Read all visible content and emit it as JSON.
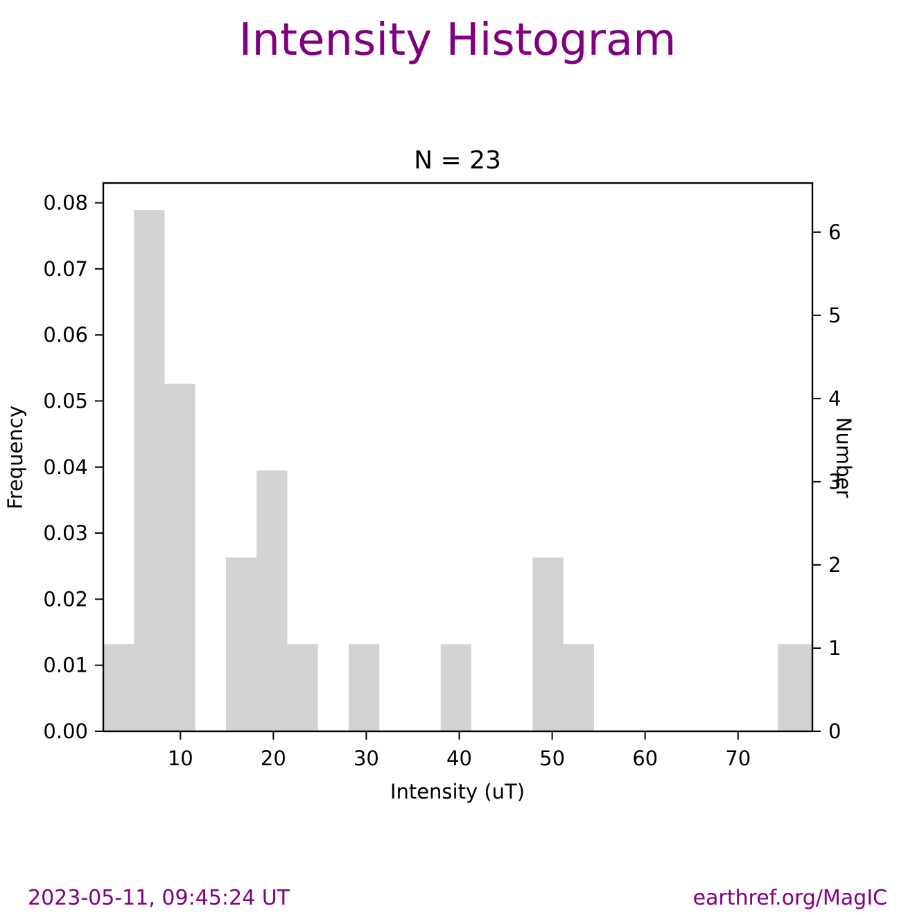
{
  "chart_data": {
    "type": "bar",
    "title": "Intensity Histogram",
    "subtitle": "N = 23",
    "xlabel": "Intensity (uT)",
    "ylabel": "Frequency",
    "ylabel_right": "Number",
    "xlim": [
      1.7,
      78.0
    ],
    "ylim": [
      0,
      0.083
    ],
    "ylim_right": [
      0,
      6.59
    ],
    "x_ticks": [
      10,
      20,
      30,
      40,
      50,
      60,
      70
    ],
    "y_ticks": [
      0.0,
      0.01,
      0.02,
      0.03,
      0.04,
      0.05,
      0.06,
      0.07,
      0.08
    ],
    "y_ticks_right": [
      0,
      1,
      2,
      3,
      4,
      5,
      6
    ],
    "grid": false,
    "bar_color": "#d3d3d3",
    "bins": [
      {
        "start": 1.7,
        "end": 5.0,
        "count": 1,
        "frequency": 0.0132
      },
      {
        "start": 5.0,
        "end": 8.3,
        "count": 6,
        "frequency": 0.0789
      },
      {
        "start": 8.3,
        "end": 11.6,
        "count": 4,
        "frequency": 0.0526
      },
      {
        "start": 11.6,
        "end": 14.9,
        "count": 0,
        "frequency": 0.0
      },
      {
        "start": 14.9,
        "end": 18.2,
        "count": 2,
        "frequency": 0.0263
      },
      {
        "start": 18.2,
        "end": 21.5,
        "count": 3,
        "frequency": 0.0395
      },
      {
        "start": 21.5,
        "end": 24.8,
        "count": 1,
        "frequency": 0.0132
      },
      {
        "start": 24.8,
        "end": 28.1,
        "count": 0,
        "frequency": 0.0
      },
      {
        "start": 28.1,
        "end": 31.4,
        "count": 1,
        "frequency": 0.0132
      },
      {
        "start": 31.4,
        "end": 34.7,
        "count": 0,
        "frequency": 0.0
      },
      {
        "start": 34.7,
        "end": 38.0,
        "count": 0,
        "frequency": 0.0
      },
      {
        "start": 38.0,
        "end": 41.3,
        "count": 1,
        "frequency": 0.0132
      },
      {
        "start": 41.3,
        "end": 44.6,
        "count": 0,
        "frequency": 0.0
      },
      {
        "start": 44.6,
        "end": 47.9,
        "count": 0,
        "frequency": 0.0
      },
      {
        "start": 47.9,
        "end": 51.2,
        "count": 2,
        "frequency": 0.0263
      },
      {
        "start": 51.2,
        "end": 54.5,
        "count": 1,
        "frequency": 0.0132
      },
      {
        "start": 54.5,
        "end": 57.8,
        "count": 0,
        "frequency": 0.0
      },
      {
        "start": 57.8,
        "end": 61.1,
        "count": 0,
        "frequency": 0.0
      },
      {
        "start": 61.1,
        "end": 64.4,
        "count": 0,
        "frequency": 0.0
      },
      {
        "start": 64.4,
        "end": 67.7,
        "count": 0,
        "frequency": 0.0
      },
      {
        "start": 67.7,
        "end": 71.0,
        "count": 0,
        "frequency": 0.0
      },
      {
        "start": 71.0,
        "end": 74.3,
        "count": 0,
        "frequency": 0.0
      },
      {
        "start": 74.3,
        "end": 78.0,
        "count": 1,
        "frequency": 0.0132
      }
    ]
  },
  "colors": {
    "title": "#800080",
    "footer": "#800080"
  },
  "footer": {
    "timestamp": "2023-05-11, 09:45:24 UT",
    "source": "earthref.org/MagIC"
  }
}
